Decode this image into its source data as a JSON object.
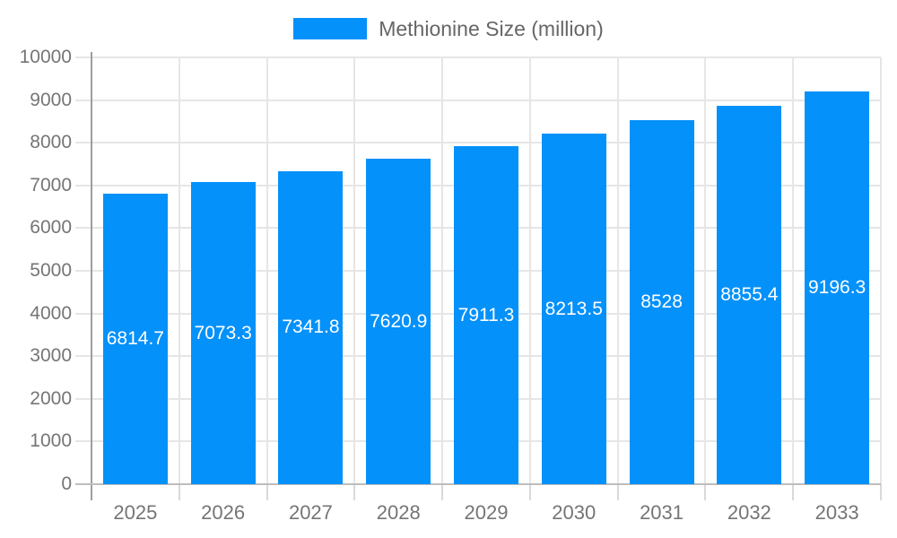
{
  "chart_data": {
    "type": "bar",
    "title": "",
    "legend": "Methionine Size (million)",
    "legend_position": "top",
    "categories": [
      "2025",
      "2026",
      "2027",
      "2028",
      "2029",
      "2030",
      "2031",
      "2032",
      "2033"
    ],
    "values": [
      6814.7,
      7073.3,
      7341.8,
      7620.9,
      7911.3,
      8213.5,
      8528,
      8855.4,
      9196.3
    ],
    "value_labels": [
      "6814.7",
      "7073.3",
      "7341.8",
      "7620.9",
      "7911.3",
      "8213.5",
      "8528",
      "8855.4",
      "9196.3"
    ],
    "ytick_labels": [
      "0",
      "1000",
      "2000",
      "3000",
      "4000",
      "5000",
      "6000",
      "7000",
      "8000",
      "9000",
      "10000"
    ],
    "xlabel": "",
    "ylabel": "",
    "ylim": [
      0,
      10000
    ],
    "ytick_step": 1000,
    "grid": true,
    "colors": {
      "bar": "#0591fa",
      "bar_label": "#ffffff",
      "axis_label": "#757575",
      "legend_text": "#666666",
      "gridline": "#e6e6e6",
      "category_tick": "#d9d9d9",
      "y_axis_line": "#9e9e9e",
      "x_axis_line": "#bdbdbd",
      "background": "#ffffff"
    }
  }
}
